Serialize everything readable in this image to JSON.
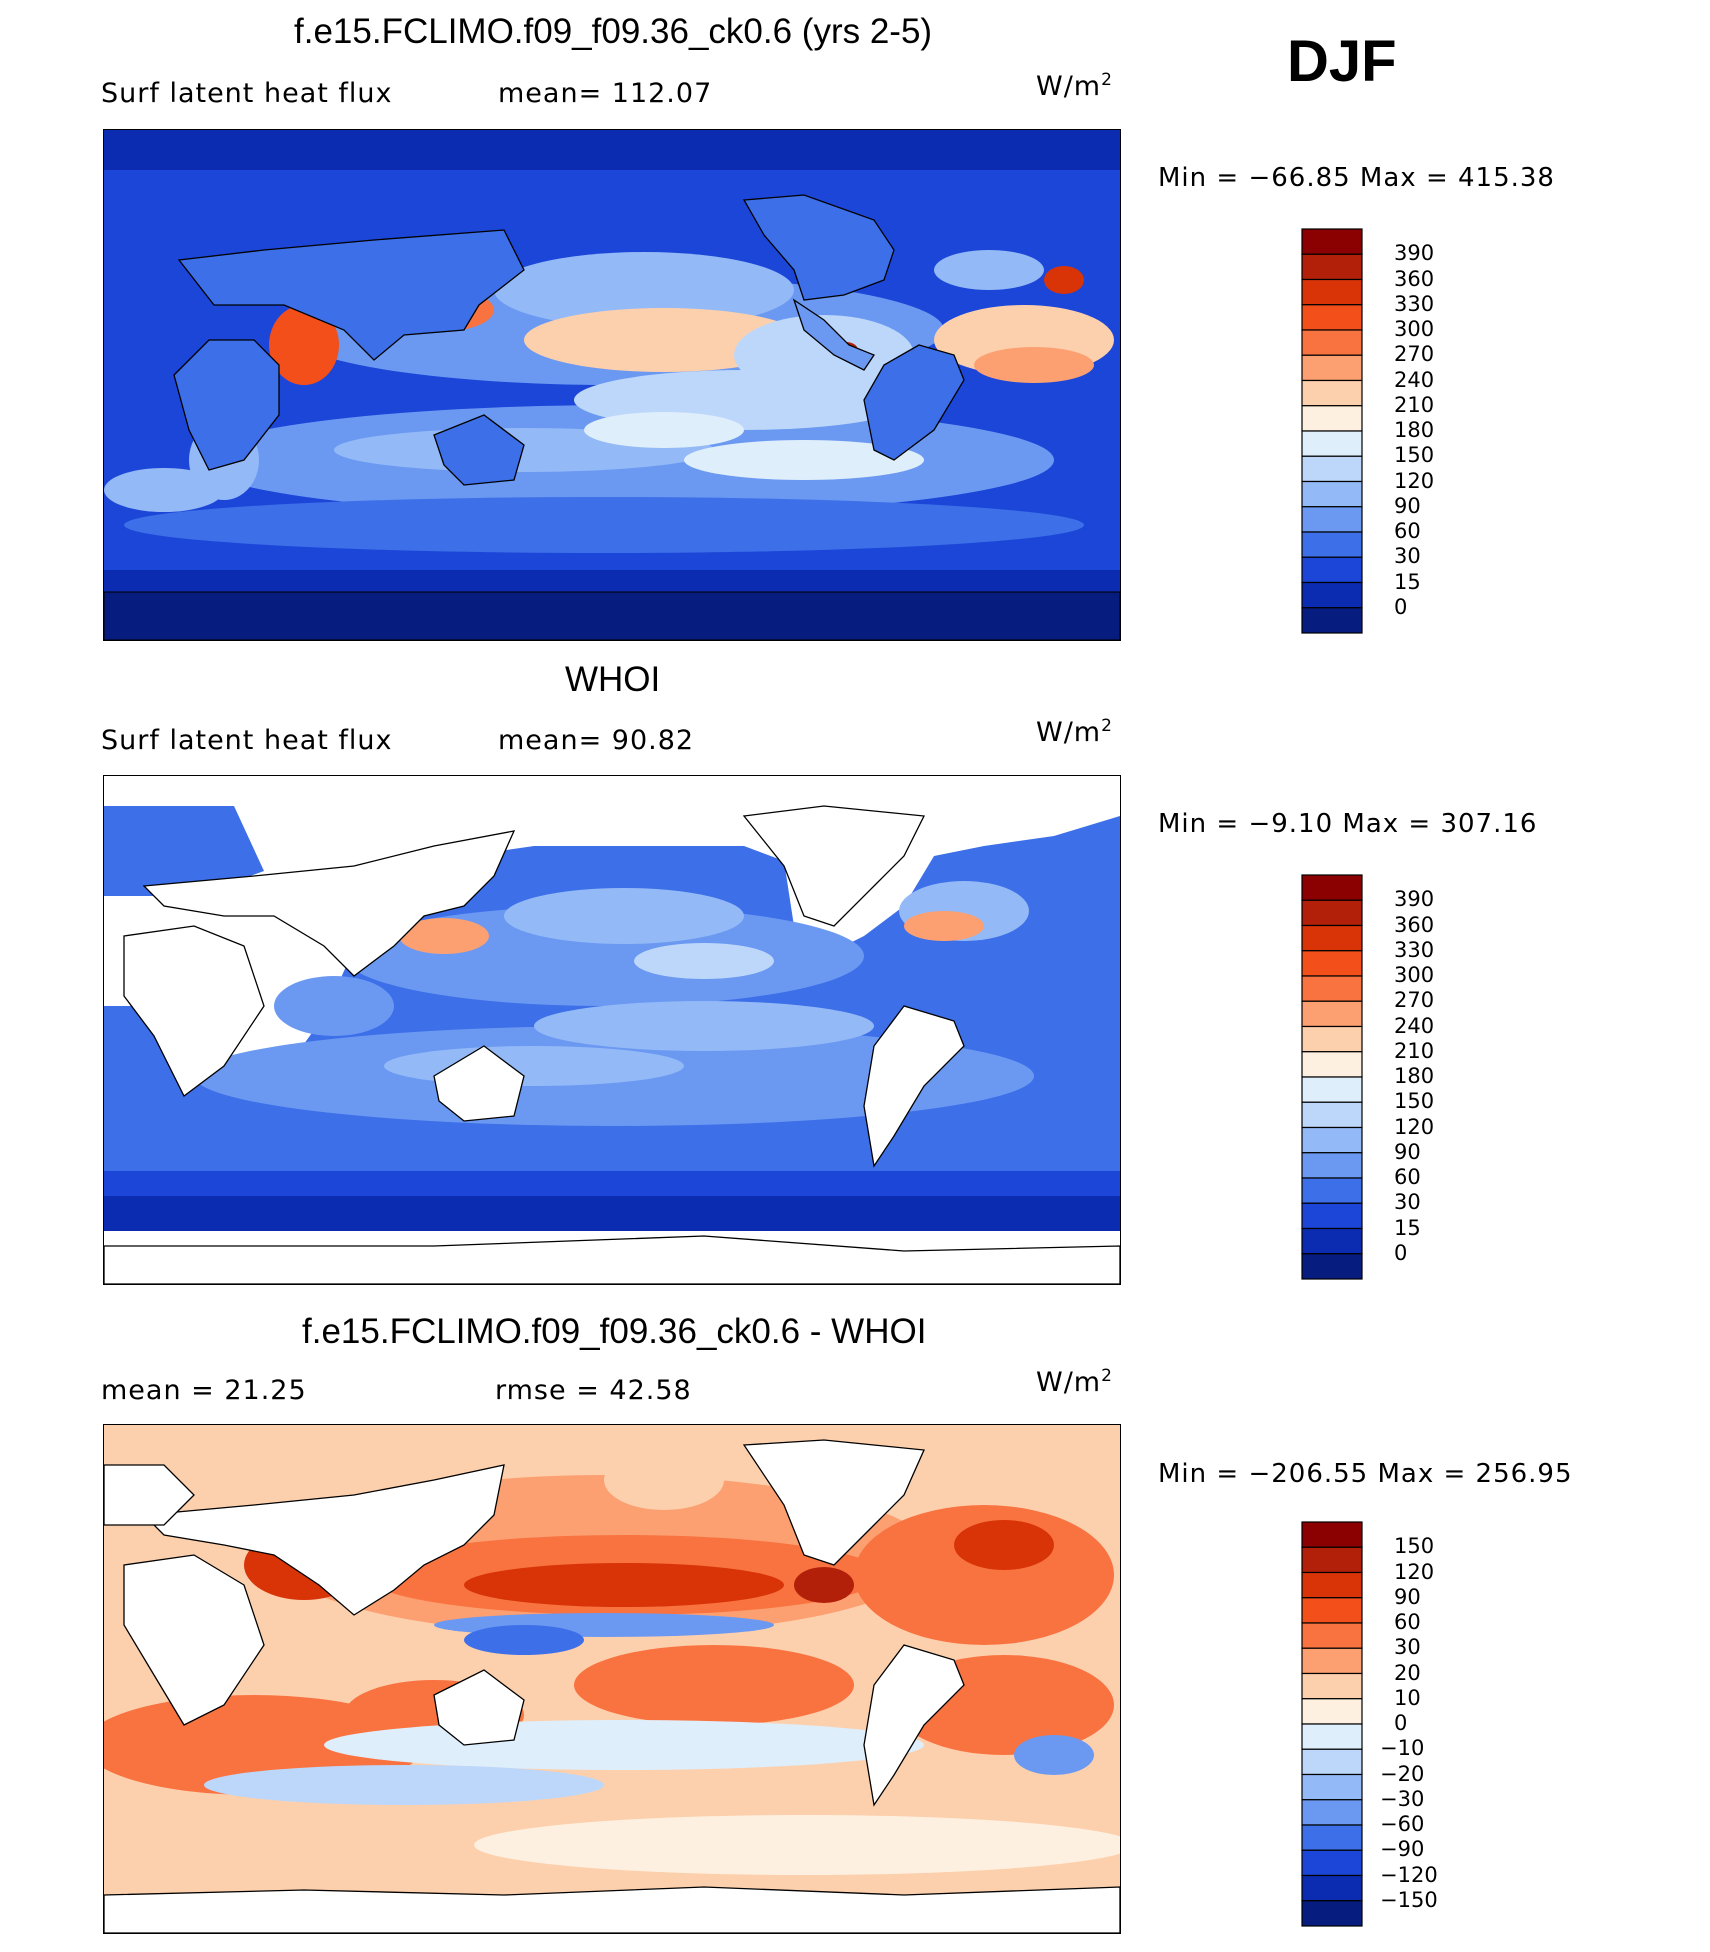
{
  "season": "DJF",
  "units_base": "W/m",
  "units_exp": "2",
  "chart_data": [
    {
      "type": "heatmap",
      "title": "f.e15.FCLIMO.f09_f09.36_ck0.6 (yrs 2-5)",
      "subtitle_left": "Surf  latent  heat  flux",
      "subtitle_mid": "mean=  112.07",
      "mean": 112.07,
      "min_max_text": "Min  =  −66.85  Max  =  415.38",
      "min": -66.85,
      "max": 415.38,
      "colorbar_levels": [
        "390",
        "360",
        "330",
        "300",
        "270",
        "240",
        "210",
        "180",
        "150",
        "120",
        "90",
        "60",
        "30",
        "15",
        "0"
      ],
      "colors": [
        "#8b0000",
        "#b3200a",
        "#d83408",
        "#f24f1a",
        "#f97341",
        "#fca072",
        "#fdd0ad",
        "#fef0e0",
        "#dfeefb",
        "#bdd7fa",
        "#93b9f7",
        "#6b99f2",
        "#3c6fe8",
        "#1c46d8",
        "#0b2bb0",
        "#061c7e"
      ]
    },
    {
      "type": "heatmap",
      "title": "WHOI",
      "subtitle_left": "Surf  latent  heat  flux",
      "subtitle_mid": "mean=   90.82",
      "mean": 90.82,
      "min_max_text": "Min  =   −9.10  Max  =  307.16",
      "min": -9.1,
      "max": 307.16,
      "colorbar_levels": [
        "390",
        "360",
        "330",
        "300",
        "270",
        "240",
        "210",
        "180",
        "150",
        "120",
        "90",
        "60",
        "30",
        "15",
        "0"
      ],
      "colors": [
        "#8b0000",
        "#b3200a",
        "#d83408",
        "#f24f1a",
        "#f97341",
        "#fca072",
        "#fdd0ad",
        "#fef0e0",
        "#dfeefb",
        "#bdd7fa",
        "#93b9f7",
        "#6b99f2",
        "#3c6fe8",
        "#1c46d8",
        "#0b2bb0",
        "#061c7e"
      ]
    },
    {
      "type": "heatmap",
      "title": "f.e15.FCLIMO.f09_f09.36_ck0.6 - WHOI",
      "subtitle_left": "mean  =    21.25",
      "subtitle_mid": "rmse  =    42.58",
      "mean": 21.25,
      "rmse": 42.58,
      "min_max_text": "Min  =  −206.55  Max  =  256.95",
      "min": -206.55,
      "max": 256.95,
      "colorbar_levels": [
        "150",
        "120",
        "90",
        "60",
        "30",
        "20",
        "10",
        "0",
        "−10",
        "−20",
        "−30",
        "−60",
        "−90",
        "−120",
        "−150"
      ],
      "colors": [
        "#8b0000",
        "#b3200a",
        "#d83408",
        "#f24f1a",
        "#f97341",
        "#fca072",
        "#fdd0ad",
        "#fef0e0",
        "#dfeefb",
        "#bdd7fa",
        "#93b9f7",
        "#6b99f2",
        "#3c6fe8",
        "#1c46d8",
        "#0b2bb0",
        "#061c7e"
      ]
    }
  ]
}
